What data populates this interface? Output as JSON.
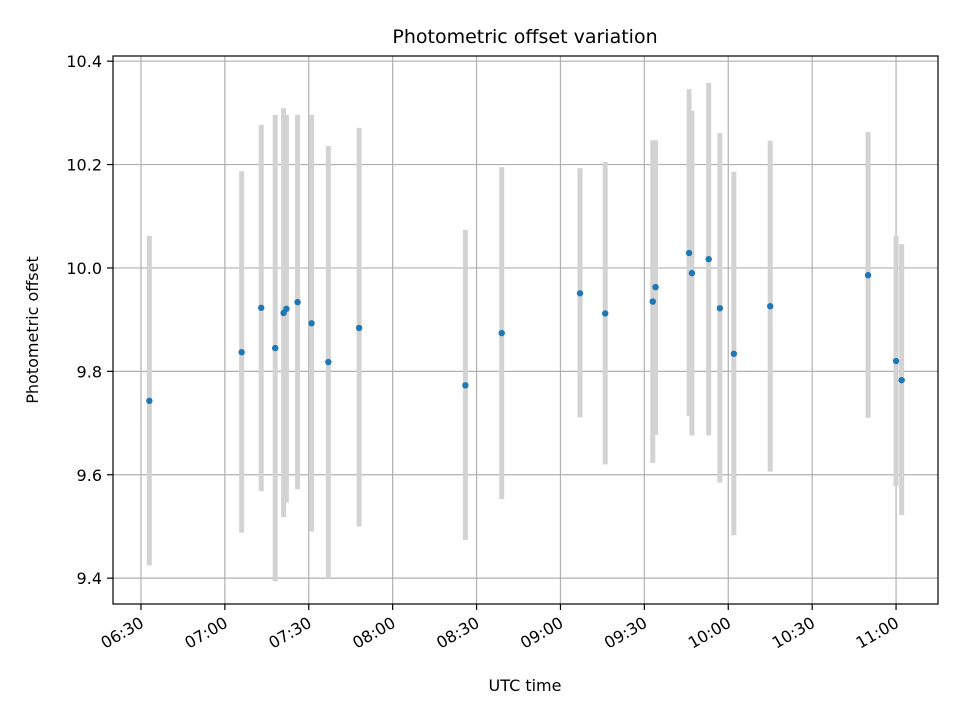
{
  "chart_data": {
    "type": "scatter",
    "title": "Photometric offset variation",
    "xlabel": "UTC time",
    "ylabel": "Photometric offset",
    "x_ticks": [
      "06:30",
      "07:00",
      "07:30",
      "08:00",
      "08:30",
      "09:00",
      "09:30",
      "10:00",
      "10:30",
      "11:00"
    ],
    "y_ticks": [
      "9.4",
      "9.6",
      "9.8",
      "10.0",
      "10.2",
      "10.4"
    ],
    "xlim": [
      "06:20",
      "11:15"
    ],
    "ylim": [
      9.35,
      10.41
    ],
    "grid": true,
    "colors": {
      "marker": "#1f77b4",
      "errorbar": "#d3d3d3",
      "grid": "#b0b0b0"
    },
    "series": [
      {
        "points": [
          {
            "x": "06:33",
            "y": 9.743,
            "ylow": 9.425,
            "yhigh": 10.062
          },
          {
            "x": "07:06",
            "y": 9.837,
            "ylow": 9.488,
            "yhigh": 10.187
          },
          {
            "x": "07:13",
            "y": 9.923,
            "ylow": 9.568,
            "yhigh": 10.277
          },
          {
            "x": "07:18",
            "y": 9.845,
            "ylow": 9.394,
            "yhigh": 10.296
          },
          {
            "x": "07:21",
            "y": 9.913,
            "ylow": 9.518,
            "yhigh": 10.309
          },
          {
            "x": "07:22",
            "y": 9.921,
            "ylow": 9.546,
            "yhigh": 10.296
          },
          {
            "x": "07:26",
            "y": 9.934,
            "ylow": 9.572,
            "yhigh": 10.296
          },
          {
            "x": "07:31",
            "y": 9.893,
            "ylow": 9.49,
            "yhigh": 10.296
          },
          {
            "x": "07:37",
            "y": 9.818,
            "ylow": 9.4,
            "yhigh": 10.236
          },
          {
            "x": "07:48",
            "y": 9.884,
            "ylow": 9.5,
            "yhigh": 10.271
          },
          {
            "x": "08:26",
            "y": 9.773,
            "ylow": 9.474,
            "yhigh": 10.074
          },
          {
            "x": "08:39",
            "y": 9.874,
            "ylow": 9.553,
            "yhigh": 10.195
          },
          {
            "x": "09:07",
            "y": 9.951,
            "ylow": 9.711,
            "yhigh": 10.193
          },
          {
            "x": "09:16",
            "y": 9.912,
            "ylow": 9.62,
            "yhigh": 10.205
          },
          {
            "x": "09:33",
            "y": 9.935,
            "ylow": 9.623,
            "yhigh": 10.247
          },
          {
            "x": "09:34",
            "y": 9.963,
            "ylow": 9.677,
            "yhigh": 10.247
          },
          {
            "x": "09:46",
            "y": 10.029,
            "ylow": 9.714,
            "yhigh": 10.346
          },
          {
            "x": "09:47",
            "y": 9.99,
            "ylow": 9.676,
            "yhigh": 10.304
          },
          {
            "x": "09:53",
            "y": 10.017,
            "ylow": 9.676,
            "yhigh": 10.358
          },
          {
            "x": "09:57",
            "y": 9.922,
            "ylow": 9.585,
            "yhigh": 10.261
          },
          {
            "x": "10:02",
            "y": 9.834,
            "ylow": 9.483,
            "yhigh": 10.186
          },
          {
            "x": "10:15",
            "y": 9.926,
            "ylow": 9.606,
            "yhigh": 10.246
          },
          {
            "x": "10:50",
            "y": 9.986,
            "ylow": 9.71,
            "yhigh": 10.263
          },
          {
            "x": "11:00",
            "y": 9.82,
            "ylow": 9.578,
            "yhigh": 10.062
          },
          {
            "x": "11:02",
            "y": 9.783,
            "ylow": 9.522,
            "yhigh": 10.046
          }
        ]
      }
    ]
  }
}
